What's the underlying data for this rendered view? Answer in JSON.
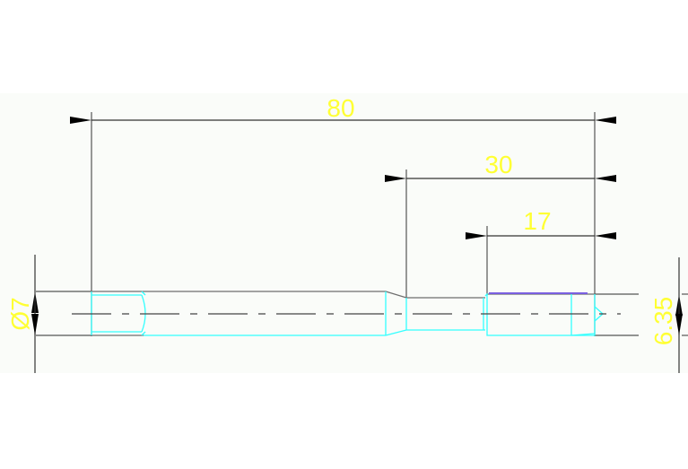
{
  "drawing": {
    "dimensions": {
      "overall_length": "80",
      "step_length": "30",
      "end_length": "17",
      "shank_diameter": "Ø7",
      "end_diameter": "6.35"
    },
    "colors": {
      "background": "#ffffff",
      "band": "#fafcf9",
      "dimension_lines": "#000000",
      "outline": "#6e6e6e",
      "hidden_detail": "#33ffff",
      "dimension_text": "#ffff33",
      "accent_edge": "#7a5fe0"
    }
  }
}
